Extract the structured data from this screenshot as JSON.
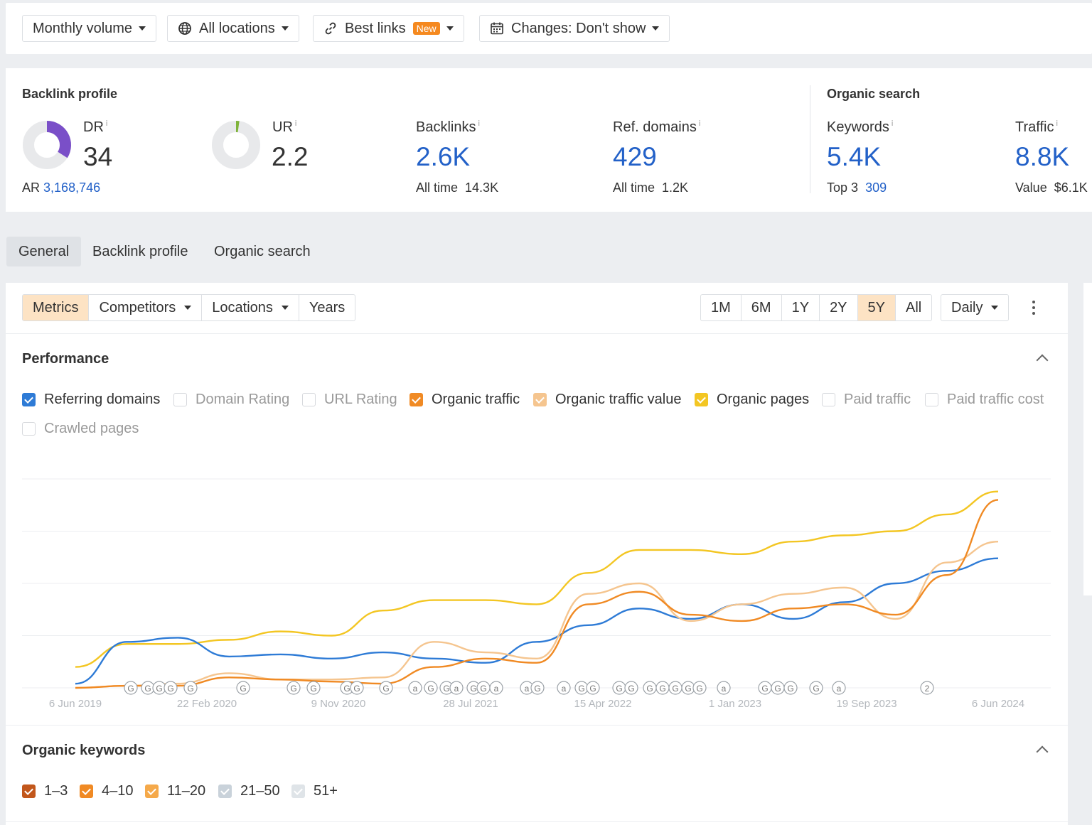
{
  "filters": {
    "volume": "Monthly volume",
    "locations": "All locations",
    "best_links": "Best links",
    "new_badge": "New",
    "changes": "Changes: Don't show"
  },
  "backlink_profile": {
    "title": "Backlink profile",
    "dr": {
      "label": "DR",
      "value": "34",
      "fill_fraction": 0.34
    },
    "ar": {
      "label": "AR",
      "value": "3,168,746"
    },
    "ur": {
      "label": "UR",
      "value": "2.2",
      "fill_fraction": 0.022
    },
    "backlinks": {
      "label": "Backlinks",
      "value": "2.6K",
      "sub_label": "All time",
      "sub_value": "14.3K"
    },
    "ref_domains": {
      "label": "Ref. domains",
      "value": "429",
      "sub_label": "All time",
      "sub_value": "1.2K"
    }
  },
  "organic_search": {
    "title": "Organic search",
    "keywords": {
      "label": "Keywords",
      "value": "5.4K",
      "sub_label": "Top 3",
      "sub_value": "309"
    },
    "traffic": {
      "label": "Traffic",
      "value": "8.8K",
      "sub_label": "Value",
      "sub_value": "$6.1K"
    }
  },
  "tabs": [
    "General",
    "Backlink profile",
    "Organic search"
  ],
  "toolbar": {
    "modes": [
      "Metrics",
      "Competitors",
      "Locations",
      "Years"
    ],
    "ranges": [
      "1M",
      "6M",
      "1Y",
      "2Y",
      "5Y",
      "All"
    ],
    "active_range": "5Y",
    "interval": "Daily"
  },
  "performance": {
    "title": "Performance",
    "metrics": [
      {
        "label": "Referring domains",
        "checked": true,
        "color": "#2e7bd6"
      },
      {
        "label": "Domain Rating",
        "checked": false
      },
      {
        "label": "URL Rating",
        "checked": false
      },
      {
        "label": "Organic traffic",
        "checked": true,
        "color": "#f08a24"
      },
      {
        "label": "Organic traffic value",
        "checked": true,
        "color": "#f5c58f"
      },
      {
        "label": "Organic pages",
        "checked": true,
        "color": "#f3c623"
      },
      {
        "label": "Paid traffic",
        "checked": false
      },
      {
        "label": "Paid traffic cost",
        "checked": false
      },
      {
        "label": "Crawled pages",
        "checked": false
      }
    ]
  },
  "chart_data": {
    "type": "line",
    "x_ticks": [
      "6 Jun 2019",
      "22 Feb 2020",
      "9 Nov 2020",
      "28 Jul 2021",
      "15 Apr 2022",
      "1 Jan 2023",
      "19 Sep 2023",
      "6 Jun 2024"
    ],
    "y_range": [
      0,
      100
    ],
    "grid": true,
    "series": [
      {
        "name": "Organic pages",
        "color": "#f3c623",
        "values": [
          10,
          21,
          21,
          23,
          27,
          25,
          37,
          42,
          42,
          40,
          55,
          66,
          66,
          64,
          70,
          73,
          75,
          83,
          94
        ]
      },
      {
        "name": "Referring domains",
        "color": "#2e7bd6",
        "values": [
          2,
          22,
          24,
          15,
          16,
          14,
          17,
          14,
          12,
          22,
          30,
          38,
          33,
          40,
          33,
          41,
          50,
          56,
          62
        ]
      },
      {
        "name": "Organic traffic",
        "color": "#f08a24",
        "values": [
          0,
          1,
          1,
          5,
          4,
          3,
          2,
          10,
          14,
          12,
          40,
          46,
          35,
          32,
          38,
          40,
          35,
          54,
          90
        ]
      },
      {
        "name": "Organic traffic value",
        "color": "#f5c58f",
        "values": [
          0,
          1,
          2,
          7,
          4,
          4,
          5,
          22,
          17,
          14,
          45,
          50,
          32,
          40,
          45,
          48,
          33,
          60,
          70
        ]
      }
    ],
    "annotations": [
      "G",
      "G",
      "G",
      "G",
      "G",
      "G",
      "G",
      "G",
      "G",
      "G",
      "G",
      "a",
      "G",
      "G",
      "a",
      "G",
      "G",
      "a",
      "a",
      "G",
      "a",
      "G",
      "G",
      "G",
      "G",
      "G",
      "G",
      "G",
      "G",
      "G",
      "a",
      "G",
      "G",
      "G",
      "G",
      "a",
      "2"
    ]
  },
  "organic_keywords": {
    "title": "Organic keywords",
    "ranges": [
      {
        "label": "1–3",
        "checked": true,
        "color": "#c2571b"
      },
      {
        "label": "4–10",
        "checked": true,
        "color": "#f08a24"
      },
      {
        "label": "11–20",
        "checked": true,
        "color": "#f5a94a"
      },
      {
        "label": "21–50",
        "checked": true,
        "color": "#c9d2da"
      },
      {
        "label": "51+",
        "checked": true,
        "color": "#dfe4e8"
      }
    ]
  }
}
